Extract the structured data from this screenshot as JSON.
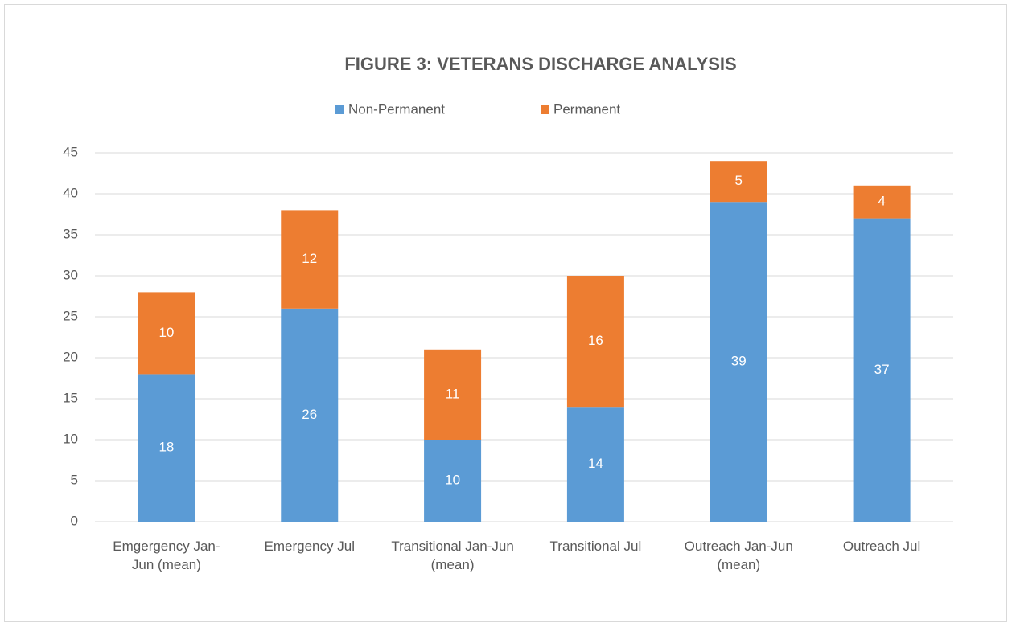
{
  "chart_data": {
    "type": "stacked_bar",
    "title": "FIGURE 3: VETERANS DISCHARGE ANALYSIS",
    "categories": [
      "Emgergency Jan-Jun (mean)",
      "Emergency Jul",
      "Transitional Jan-Jun (mean)",
      "Transitional Jul",
      "Outreach Jan-Jun (mean)",
      "Outreach Jul"
    ],
    "series": [
      {
        "name": "Non-Permanent",
        "color": "#5b9bd5",
        "values": [
          18,
          26,
          10,
          14,
          39,
          37
        ]
      },
      {
        "name": "Permanent",
        "color": "#ed7d31",
        "values": [
          10,
          12,
          11,
          16,
          5,
          4
        ]
      }
    ],
    "ylim": [
      0,
      45
    ],
    "yticks": [
      0,
      5,
      10,
      15,
      20,
      25,
      30,
      35,
      40,
      45
    ],
    "grid": true,
    "legend": "top",
    "data_labels": true
  }
}
